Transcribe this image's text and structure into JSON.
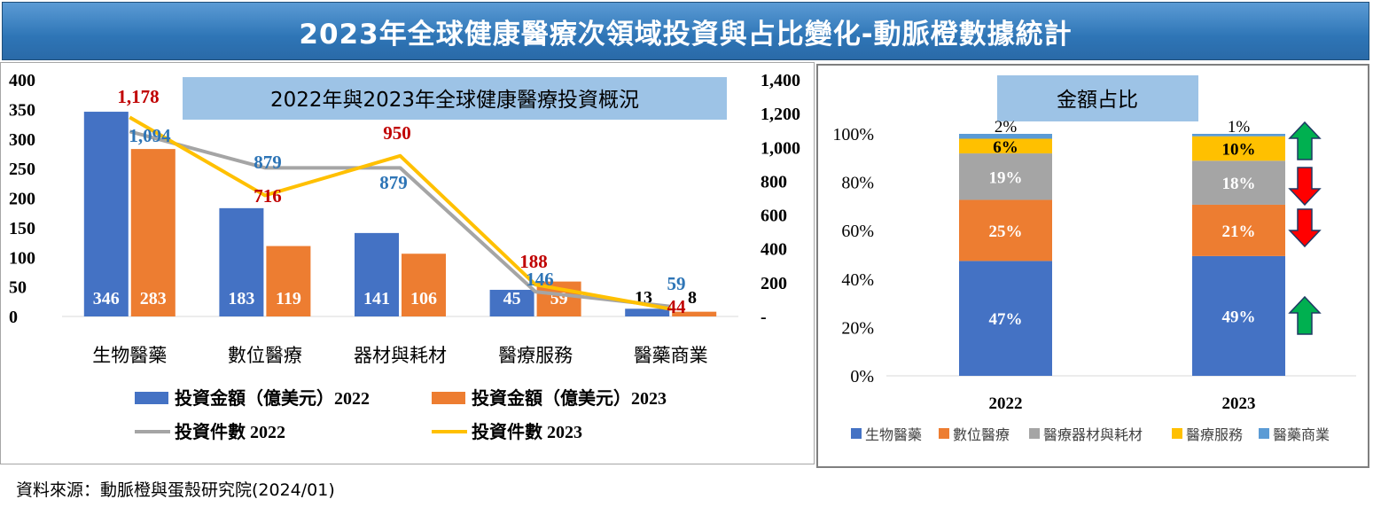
{
  "page_title": "2023年全球健康醫療次領域投資與占比變化-動脈橙數據統計",
  "source": "資料來源：動脈橙與蛋殼研究院(2024/01)",
  "colors": {
    "blue": "#4472c4",
    "orange": "#ed7d31",
    "gray": "#a5a5a5",
    "yellow": "#ffc000",
    "lightblue": "#5b9bd5",
    "red_label": "#c00000",
    "blue_label": "#2e75b6",
    "box_fill": "#9dc3e6",
    "arrow_up": "#00b050",
    "arrow_down": "#ff0000"
  },
  "chart_data": [
    {
      "type": "bar",
      "title": "2022年與2023年全球健康醫療投資概況",
      "categories": [
        "生物醫藥",
        "數位醫療",
        "器材與耗材",
        "醫療服務",
        "醫藥商業"
      ],
      "y_left": {
        "ticks": [
          "400",
          "350",
          "300",
          "250",
          "200",
          "150",
          "100",
          "50",
          "0"
        ],
        "range": [
          0,
          400
        ]
      },
      "y_right": {
        "ticks": [
          "1,400",
          "1,200",
          "1,000",
          "800",
          "600",
          "400",
          "200",
          "-"
        ],
        "range": [
          0,
          1400
        ]
      },
      "series": [
        {
          "name": "投資金額（億美元）2022",
          "kind": "bar",
          "axis": "left",
          "color": "#4472c4",
          "values": [
            346,
            183,
            141,
            45,
            13
          ],
          "labels": [
            "346",
            "183",
            "141",
            "45",
            "13"
          ]
        },
        {
          "name": "投資金額（億美元）2023",
          "kind": "bar",
          "axis": "left",
          "color": "#ed7d31",
          "values": [
            283,
            119,
            106,
            59,
            8
          ],
          "labels": [
            "283",
            "119",
            "106",
            "59",
            "8"
          ]
        },
        {
          "name": "投資件數 2022",
          "kind": "line",
          "axis": "right",
          "color": "#a5a5a5",
          "values": [
            1094,
            879,
            879,
            146,
            59
          ],
          "labels": [
            "1,094",
            "879",
            "879",
            "146",
            "59"
          ]
        },
        {
          "name": "投資件數 2023",
          "kind": "line",
          "axis": "right",
          "color": "#ffc000",
          "values": [
            1178,
            716,
            950,
            188,
            44
          ],
          "labels": [
            "1,178",
            "716",
            "950",
            "188",
            "44"
          ]
        }
      ],
      "legend": {
        "items": [
          {
            "label": "投資金額（億美元）2022",
            "color": "#4472c4",
            "kind": "bar"
          },
          {
            "label": "投資金額（億美元）2023",
            "color": "#ed7d31",
            "kind": "bar"
          },
          {
            "label": "投資件數 2022",
            "color": "#a5a5a5",
            "kind": "line"
          },
          {
            "label": "投資件數 2023",
            "color": "#ffc000",
            "kind": "line"
          }
        ],
        "placement": "bottom"
      },
      "grid": false
    },
    {
      "type": "bar",
      "stacked": true,
      "percent": true,
      "title": "金額占比",
      "categories": [
        "2022",
        "2023"
      ],
      "y_ticks": [
        "100%",
        "80%",
        "60%",
        "40%",
        "20%",
        "0%"
      ],
      "ylim": [
        0,
        100
      ],
      "series": [
        {
          "name": "生物醫藥",
          "color": "#4472c4",
          "values": [
            47,
            49
          ],
          "labels": [
            "47%",
            "49%"
          ]
        },
        {
          "name": "數位醫療",
          "color": "#ed7d31",
          "values": [
            25,
            21
          ],
          "labels": [
            "25%",
            "21%"
          ]
        },
        {
          "name": "醫療器材與耗材",
          "color": "#a5a5a5",
          "values": [
            19,
            18
          ],
          "labels": [
            "19%",
            "18%"
          ]
        },
        {
          "name": "醫療服務",
          "color": "#ffc000",
          "values": [
            6,
            10
          ],
          "labels": [
            "6%",
            "10%"
          ]
        },
        {
          "name": "醫藥商業",
          "color": "#5b9bd5",
          "values": [
            2,
            1
          ],
          "labels": [
            "2%",
            "1%"
          ]
        }
      ],
      "change_arrows": [
        {
          "series": "生物醫藥",
          "direction": "up"
        },
        {
          "series": "數位醫療",
          "direction": "down"
        },
        {
          "series": "醫療器材與耗材",
          "direction": "down"
        },
        {
          "series": "醫療服務",
          "direction": "up"
        }
      ],
      "legend": {
        "placement": "bottom"
      },
      "grid": false
    }
  ]
}
